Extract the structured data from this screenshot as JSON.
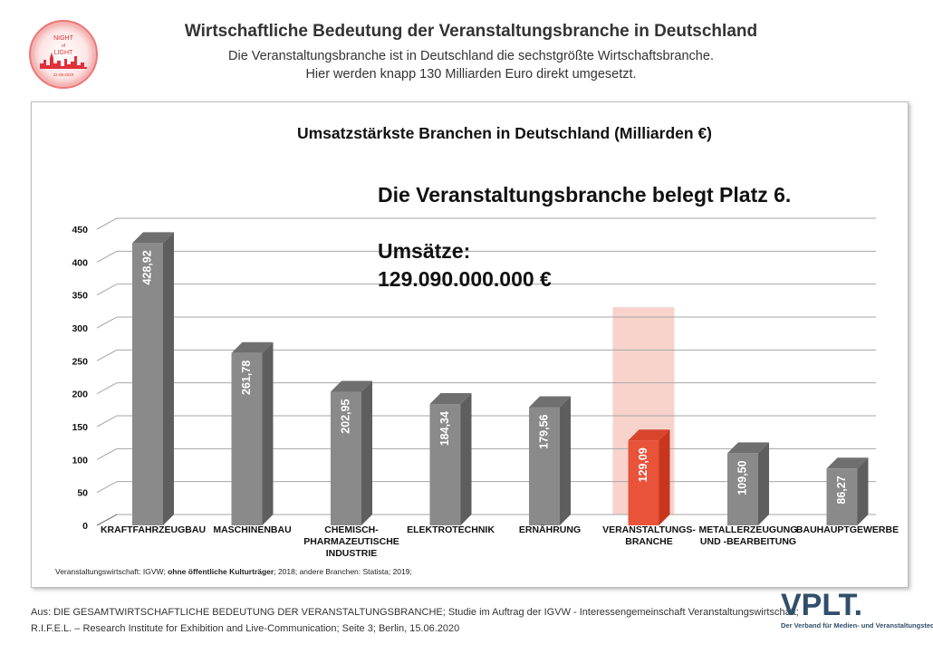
{
  "header": {
    "title": "Wirtschaftliche Bedeutung der Veranstaltungsbranche in Deutschland",
    "subtitle_line1": "Die Veranstaltungsbranche ist in Deutschland die sechstgrößte Wirtschaftsbranche.",
    "subtitle_line2": "Hier werden knapp 130 Milliarden Euro direkt umgesetzt.",
    "logo": {
      "text_line1": "NIGHT",
      "text_line2": "of",
      "text_line3": "LIGHT",
      "date": "22.06.2020",
      "color": "#e0303a"
    }
  },
  "chart_data": {
    "type": "bar",
    "title": "Umsatzstärkste Branchen in Deutschland (Milliarden €)",
    "categories": [
      [
        "KRAFTFAHRZEUGBAU"
      ],
      [
        "MASCHINENBAU"
      ],
      [
        "CHEMISCH-",
        "PHARMAZEUTISCHE",
        "INDUSTRIE"
      ],
      [
        "ELEKTROTECHNIK"
      ],
      [
        "ERNÄHRUNG"
      ],
      [
        "VERANSTALTUNGS-",
        "BRANCHE"
      ],
      [
        "METALLERZEUGUNG",
        "UND -BEARBEITUNG"
      ],
      [
        "BAUHAUPTGEWERBE"
      ]
    ],
    "values": [
      428.92,
      261.78,
      202.95,
      184.34,
      179.56,
      129.09,
      109.5,
      86.27
    ],
    "value_labels": [
      "428,92",
      "261,78",
      "202,95",
      "184,34",
      "179,56",
      "129,09",
      "109,50",
      "86,27"
    ],
    "highlight_index": 5,
    "highlight_box_top": 315,
    "ylim": [
      0,
      450
    ],
    "yticks": [
      0,
      50,
      100,
      150,
      200,
      250,
      300,
      350,
      400,
      450
    ],
    "grid": true,
    "colors": {
      "bar": "#8a8a8a",
      "bar_side": "#5e5e5e",
      "bar_top": "#6f6f6f",
      "highlight": "#e8533a",
      "highlight_side": "#c9361e",
      "highlight_top": "#d8442c",
      "highlight_box": "#f7d3cc",
      "grid": "#a6a6a6"
    },
    "annotation_line1": "Die Veranstaltungsbranche belegt Platz 6.",
    "annotation_line2": "Umsätze:",
    "annotation_line3": "129.090.000.000 €",
    "source": {
      "part1": "Veranstaltungswirtschaft: IGVW; ",
      "part2_bold": "ohne öffentliche Kulturträger",
      "part3": "; 2018; andere Branchen: Statista; 2019;"
    }
  },
  "footer": {
    "line1": "Aus: DIE GESAMTWIRTSCHAFTLICHE BEDEUTUNG DER VERANSTALTUNGSBRANCHE; Studie im Auftrag der IGVW - Interessengemeinschaft Veranstaltungswirtschaft;",
    "line2": "R.I.F.E.L. – Research Institute for Exhibition and Live-Communication; Seite 3; Berlin, 15.06.2020",
    "brand": "VPLT.",
    "brand_tagline": "Der Verband für Medien- und Veranstaltungstechnik"
  }
}
